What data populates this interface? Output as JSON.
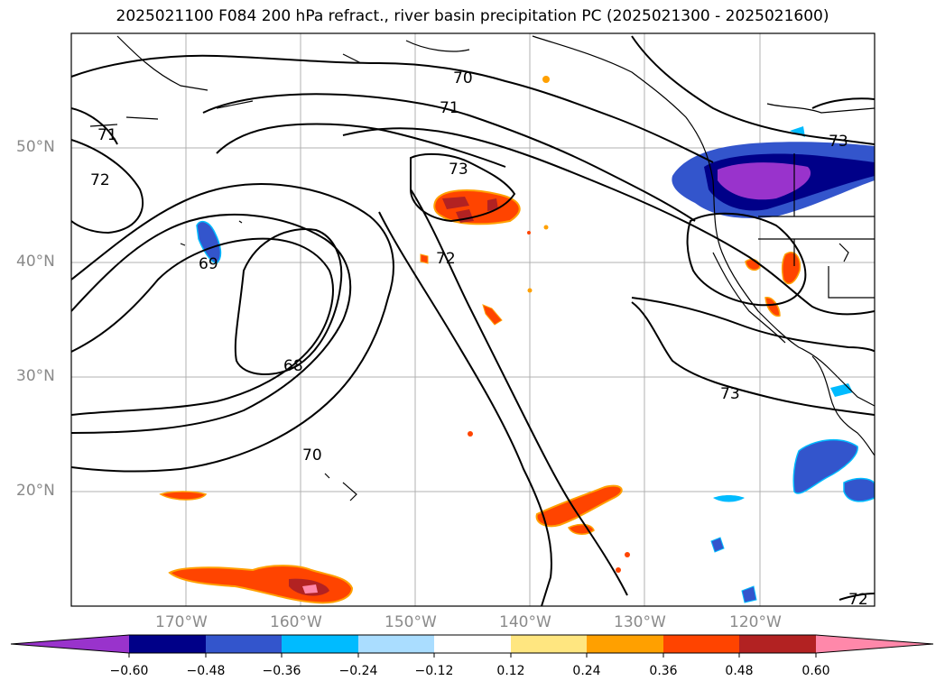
{
  "title": "2025021100 F084 200 hPa refract., river basin precipitation PC (2025021300 - 2025021600)",
  "lat_labels": [
    "50°N",
    "40°N",
    "30°N",
    "20°N"
  ],
  "lon_labels": [
    "170°W",
    "160°W",
    "150°W",
    "140°W",
    "130°W",
    "120°W"
  ],
  "contour_labels": [
    "70",
    "71",
    "72",
    "73",
    "71",
    "72",
    "69",
    "68",
    "70",
    "73",
    "72",
    "73"
  ],
  "colorbar": {
    "ticks": [
      "−0.60",
      "−0.48",
      "−0.36",
      "−0.24",
      "−0.12",
      "0.12",
      "0.24",
      "0.36",
      "0.48",
      "0.60"
    ],
    "colors": [
      "#9933cc",
      "#000088",
      "#3355cc",
      "#00bbff",
      "#aaddff",
      "#ffffff",
      "#ffe680",
      "#ffa000",
      "#ff4400",
      "#b22222",
      "#ff88aa"
    ],
    "under_color": "#9933cc",
    "over_color": "#ff88aa"
  },
  "map_extent": {
    "lon": [
      -180,
      -110
    ],
    "lat": [
      10,
      60
    ]
  }
}
